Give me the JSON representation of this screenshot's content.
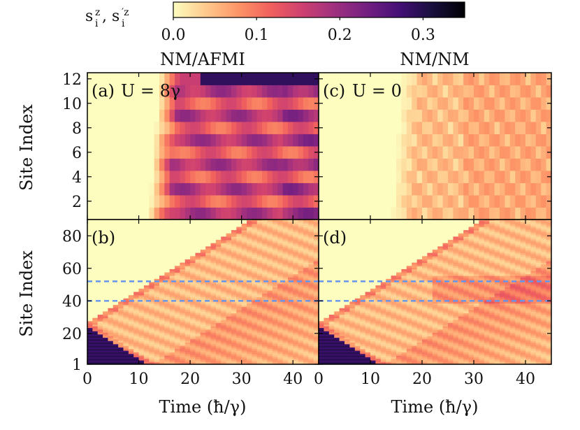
{
  "chart_data": {
    "type": "heatmap",
    "colormap": "magma_r",
    "colorbar": {
      "label": "s_i^z, s_i'^z",
      "label_main": "s",
      "label_sub": "i",
      "label_sup": "z",
      "label_sep": ",",
      "label_sup2": "′z",
      "range": [
        0.0,
        0.35
      ],
      "ticks": [
        0.0,
        0.1,
        0.2,
        0.3
      ],
      "tick_labels": [
        "0.0",
        "0.1",
        "0.2",
        "0.3"
      ],
      "stops": [
        "#fcfdbf",
        "#feca8d",
        "#fd9567",
        "#f1605d",
        "#cd4071",
        "#9e2f7f",
        "#721f81",
        "#440f76",
        "#180f3d",
        "#000004"
      ]
    },
    "column_titles": [
      "NM/AFMI",
      "NM/NM"
    ],
    "xlabel": "Time (ħ/γ)",
    "ylabel": "Site Index",
    "xlim": [
      0,
      45
    ],
    "x_ticks": [
      0,
      10,
      20,
      30,
      40
    ],
    "x_tick_labels": [
      "0",
      "10",
      "20",
      "30",
      "40"
    ],
    "panels": [
      {
        "id": "a",
        "label": "(a)",
        "annotation": "U = 8γ",
        "description": "short chain, interacting AFMI region",
        "ylim": [
          0.5,
          12.5
        ],
        "y_ticks": [
          2,
          4,
          6,
          8,
          10,
          12
        ],
        "y_tick_labels": [
          "2",
          "4",
          "6",
          "8",
          "10",
          "12"
        ],
        "sites": 12,
        "front_time": 12,
        "alternation": 0.1,
        "top_site_value": 0.27,
        "max_value": 0.27
      },
      {
        "id": "c",
        "label": "(c)",
        "annotation": "U = 0",
        "description": "short chain, non-interacting",
        "ylim": [
          0.5,
          12.5
        ],
        "y_ticks": [
          2,
          4,
          6,
          8,
          10,
          12
        ],
        "y_tick_labels": [
          "2",
          "4",
          "6",
          "8",
          "10",
          "12"
        ],
        "sites": 12,
        "front_time": 14,
        "alternation": 0.03,
        "max_value": 0.07
      },
      {
        "id": "b",
        "label": "(b)",
        "annotation": "",
        "description": "long chain, interacting",
        "ylim": [
          1,
          90
        ],
        "y_ticks": [
          1,
          20,
          40,
          60,
          80
        ],
        "y_tick_labels": [
          "1",
          "20",
          "40",
          "60",
          "80"
        ],
        "initial_region": [
          1,
          25
        ],
        "initial_value": 0.3,
        "dashed_lines": [
          40,
          52
        ],
        "wavefront_speed": 2.0,
        "max_value": 0.11
      },
      {
        "id": "d",
        "label": "(d)",
        "annotation": "",
        "description": "long chain, non-interacting",
        "ylim": [
          1,
          90
        ],
        "y_ticks": [
          1,
          20,
          40,
          60,
          80
        ],
        "y_tick_labels": [
          "1",
          "20",
          "40",
          "60",
          "80"
        ],
        "initial_region": [
          1,
          25
        ],
        "initial_value": 0.3,
        "dashed_lines": [
          40,
          52
        ],
        "wavefront_speed": 2.0,
        "max_value": 0.13
      }
    ]
  }
}
